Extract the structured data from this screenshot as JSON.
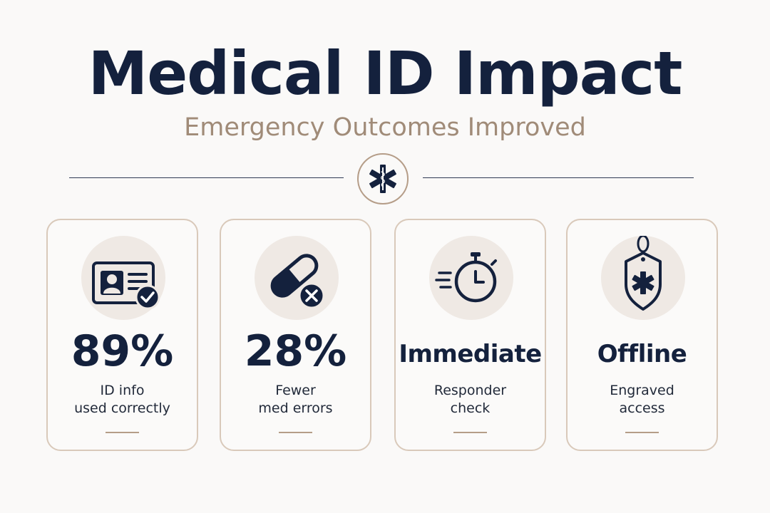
{
  "header": {
    "title": "Medical ID Impact",
    "subtitle": "Emergency Outcomes Improved",
    "emblem_icon": "star-of-life-icon"
  },
  "colors": {
    "navy": "#14213d",
    "accent": "#a08b78",
    "card_border": "#d9c9ba",
    "icon_bg": "#efe9e4"
  },
  "cards": [
    {
      "icon": "id-card-check-icon",
      "stat": "89%",
      "desc_line1": "ID info",
      "desc_line2": "used correctly"
    },
    {
      "icon": "pill-cross-icon",
      "stat": "28%",
      "desc_line1": "Fewer",
      "desc_line2": "med errors"
    },
    {
      "icon": "stopwatch-icon",
      "stat": "Immediate",
      "desc_line1": "Responder",
      "desc_line2": "check"
    },
    {
      "icon": "engraved-tag-icon",
      "stat": "Offline",
      "desc_line1": "Engraved",
      "desc_line2": "access"
    }
  ]
}
